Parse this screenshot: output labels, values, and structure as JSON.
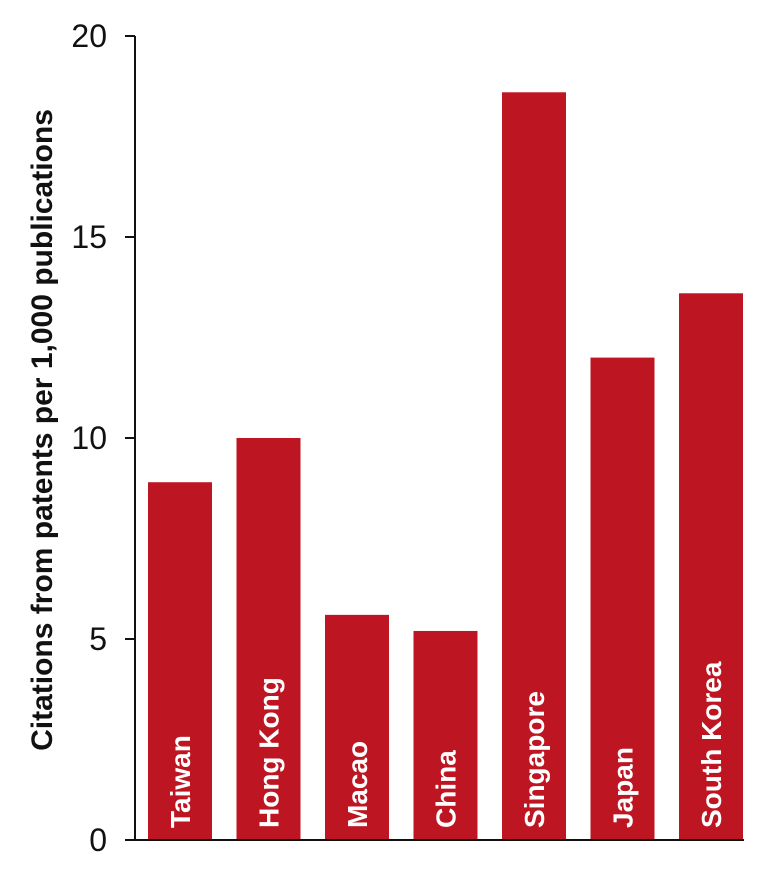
{
  "chart_data": {
    "type": "bar",
    "title": "",
    "xlabel": "",
    "ylabel": "Citations from patents per 1,000 publications",
    "categories": [
      "Taiwan",
      "Hong Kong",
      "Macao",
      "China",
      "Singapore",
      "Japan",
      "South Korea"
    ],
    "values": [
      8.9,
      10.0,
      5.6,
      5.2,
      18.6,
      12.0,
      13.6
    ],
    "ylim": [
      0,
      20
    ],
    "yticks": [
      0,
      5,
      10,
      15,
      20
    ],
    "grid": false,
    "legend": "none",
    "bar_color": "#bd1622",
    "label_color": "#ffffff"
  }
}
